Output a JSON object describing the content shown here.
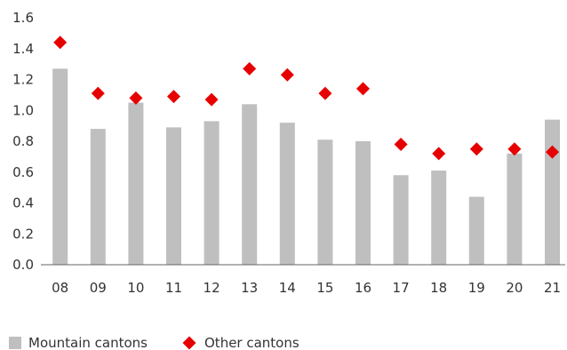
{
  "chart_data": {
    "type": "bar",
    "title": "",
    "xlabel": "",
    "ylabel": "",
    "categories": [
      "08",
      "09",
      "10",
      "11",
      "12",
      "13",
      "14",
      "15",
      "16",
      "17",
      "18",
      "19",
      "20",
      "21"
    ],
    "ylim": [
      0,
      1.6
    ],
    "yticks": [
      "0.0",
      "0.2",
      "0.4",
      "0.6",
      "0.8",
      "1.0",
      "1.2",
      "1.4",
      "1.6"
    ],
    "grid": false,
    "legend_position": "bottom-left",
    "series": [
      {
        "name": "Mountain cantons",
        "kind": "bar",
        "color": "#bfbfbf",
        "values": [
          1.27,
          0.88,
          1.05,
          0.89,
          0.93,
          1.04,
          0.92,
          0.81,
          0.8,
          0.58,
          0.61,
          0.44,
          0.72,
          0.94
        ]
      },
      {
        "name": "Other cantons",
        "kind": "marker-diamond",
        "color": "#e60000",
        "values": [
          1.44,
          1.11,
          1.08,
          1.09,
          1.07,
          1.27,
          1.23,
          1.11,
          1.14,
          0.78,
          0.72,
          0.75,
          0.75,
          0.73
        ]
      }
    ]
  }
}
